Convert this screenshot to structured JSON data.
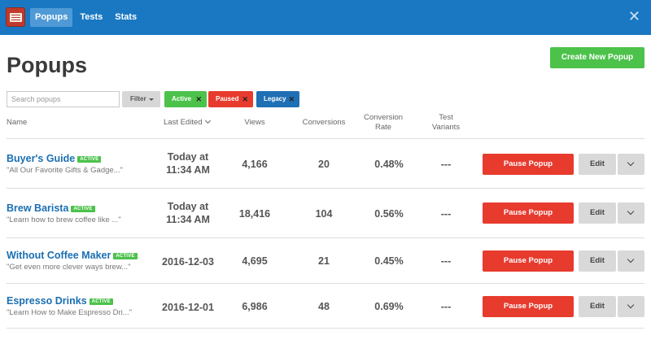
{
  "nav": {
    "tabs": [
      "Popups",
      "Tests",
      "Stats"
    ],
    "close_icon": "close-icon"
  },
  "page": {
    "title": "Popups",
    "create_button": "Create New Popup"
  },
  "filters": {
    "search_placeholder": "Search popups",
    "filter_label": "Filter",
    "chips": [
      {
        "label": "Active",
        "color": "#4cc24b"
      },
      {
        "label": "Paused",
        "color": "#e73b2e"
      },
      {
        "label": "Legacy",
        "color": "#1f6fb4"
      }
    ]
  },
  "table": {
    "headers": {
      "name": "Name",
      "last_edited": "Last Edited",
      "views": "Views",
      "conversions": "Conversions",
      "conversion_rate_line1": "Conversion",
      "conversion_rate_line2": "Rate",
      "test_variants_line1": "Test",
      "test_variants_line2": "Variants"
    },
    "rows": [
      {
        "name": "Buyer's Guide",
        "badge": "ACTIVE",
        "subtitle": "\"All Our Favorite Gifts & Gadge...\"",
        "edited_line1": "Today at",
        "edited_line2": "11:34 AM",
        "views": "4,166",
        "conversions": "20",
        "rate": "0.48%",
        "variants": "---",
        "pause_label": "Pause Popup",
        "edit_label": "Edit"
      },
      {
        "name": "Brew Barista",
        "badge": "ACTIVE",
        "subtitle": "\"Learn how to brew coffee like ...\"",
        "edited_line1": "Today at",
        "edited_line2": "11:34 AM",
        "views": "18,416",
        "conversions": "104",
        "rate": "0.56%",
        "variants": "---",
        "pause_label": "Pause Popup",
        "edit_label": "Edit"
      },
      {
        "name": "Without Coffee Maker",
        "badge": "ACTIVE",
        "subtitle": "\"Get even more clever ways brew...\"",
        "edited_line1": "2016-12-03",
        "edited_line2": "",
        "views": "4,695",
        "conversions": "21",
        "rate": "0.45%",
        "variants": "---",
        "pause_label": "Pause Popup",
        "edit_label": "Edit"
      },
      {
        "name": "Espresso Drinks",
        "badge": "ACTIVE",
        "subtitle": "\"Learn How to Make Espresso Dri...\"",
        "edited_line1": "2016-12-01",
        "edited_line2": "",
        "views": "6,986",
        "conversions": "48",
        "rate": "0.69%",
        "variants": "---",
        "pause_label": "Pause Popup",
        "edit_label": "Edit"
      }
    ]
  },
  "colors": {
    "header_bg": "#1a78c2",
    "create_green": "#4cc24b",
    "pause_red": "#e73b2e",
    "link_blue": "#1a6fb2"
  }
}
